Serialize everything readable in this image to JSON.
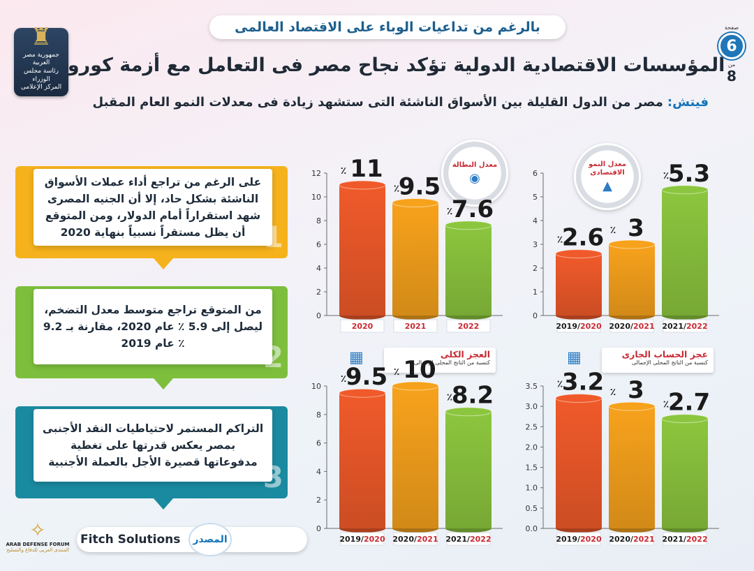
{
  "header": {
    "subtitle": "بالرغم من تداعيات الوباء على الاقتصاد العالمى",
    "title": "المؤسسات الاقتصادية الدولية تؤكد نجاح مصر فى التعامل مع أزمة كورونا",
    "fitch_name": "فيتش:",
    "fitch_text": "مصر من الدول القليلة بين الأسواق الناشئة التى ستشهد زيادة فى معدلات النمو العام المقبل"
  },
  "page": {
    "label_page": "صفحة",
    "current": "6",
    "label_of": "من",
    "total": "8"
  },
  "logo": {
    "org": "جمهورية مصر العربية\nرئاسة مجلس الوزراء\nالمركز الإعلامى",
    "icon": "eagle-emblem-icon"
  },
  "info_boxes": [
    {
      "number": "1",
      "text": "على الرغم من تراجع أداء عملات الأسواق الناشئة بشكل حاد، إلا أن الجنيه المصرى شهد استقراراً أمام الدولار، ومن المتوقع أن يظل مستقراً نسبياً بنهاية 2020",
      "color": "#f5b21c"
    },
    {
      "number": "2",
      "text": "من المتوقع تراجع متوسط معدل التضخم، ليصل إلى 5.9 ٪ عام 2020، مقارنة بـ 9.2 ٪ عام 2019",
      "color": "#7dbf3d"
    },
    {
      "number": "3",
      "text": "التراكم المستمر لاحتياطيات النقد الأجنبى بمصر يعكس قدرتها على تغطية مدفوعاتها قصيرة الأجل بالعملة الأجنبية",
      "color": "#1a8aa0"
    }
  ],
  "badges": {
    "growth": {
      "label": "معدل النمو الاقتصادى",
      "icon": "growth-chart-icon"
    },
    "unemployment": {
      "label": "معدل البطالة",
      "icon": "workers-icon"
    },
    "current_account": {
      "title": "عجز الحساب الجارى",
      "sub": "كنسبة من الناتج المحلى الإجمالى",
      "icon": "coins-chart-icon"
    },
    "overall_deficit": {
      "title": "العجز الكلى",
      "sub": "كنسبة من الناتج المحلى الإجمالى",
      "icon": "coins-chart-icon"
    }
  },
  "footer": {
    "source_label": "المصدر",
    "source_value": "Fitch Solutions",
    "watermark_name": "ARAB DEFENSE FORUM",
    "watermark_ar": "المنتدى العربى للدفاع والتسليح"
  },
  "chart_data": [
    {
      "id": "growth",
      "type": "bar",
      "percent_sign": "٪",
      "categories": [
        {
          "a": "2019/",
          "b": "2020"
        },
        {
          "a": "2020/",
          "b": "2021"
        },
        {
          "a": "2021/",
          "b": "2022"
        }
      ],
      "values": [
        2.6,
        3,
        5.3
      ],
      "labels": [
        "2.6",
        "3",
        "5.3"
      ],
      "ylim": [
        0,
        6
      ],
      "ticks": [
        "0",
        "1",
        "2",
        "3",
        "4",
        "5",
        "6"
      ],
      "tick_values": [
        0,
        1,
        2,
        3,
        4,
        5,
        6
      ],
      "colors": [
        "#f05a2a",
        "#f7a21c",
        "#8cc63e"
      ]
    },
    {
      "id": "unemployment",
      "type": "bar",
      "percent_sign": "٪",
      "categories": [
        {
          "a": "",
          "b": "2020"
        },
        {
          "a": "",
          "b": "2021"
        },
        {
          "a": "",
          "b": "2022"
        }
      ],
      "values": [
        11,
        9.5,
        7.6
      ],
      "labels": [
        "11",
        "9.5",
        "7.6"
      ],
      "ylim": [
        0,
        12
      ],
      "ticks": [
        "0",
        "2",
        "4",
        "6",
        "8",
        "10",
        "12"
      ],
      "tick_values": [
        0,
        2,
        4,
        6,
        8,
        10,
        12
      ],
      "colors": [
        "#f05a2a",
        "#f7a21c",
        "#8cc63e"
      ]
    },
    {
      "id": "current_account",
      "type": "bar",
      "percent_sign": "٪",
      "categories": [
        {
          "a": "2019/",
          "b": "2020"
        },
        {
          "a": "2020/",
          "b": "2021"
        },
        {
          "a": "2021/",
          "b": "2022"
        }
      ],
      "values": [
        3.2,
        3,
        2.7
      ],
      "labels": [
        "3.2",
        "3",
        "2.7"
      ],
      "ylim": [
        0,
        3.5
      ],
      "ticks": [
        "0.0",
        "0.5",
        "1.0",
        "1.5",
        "2.0",
        "2.5",
        "3.0",
        "3.5"
      ],
      "tick_values": [
        0,
        0.5,
        1,
        1.5,
        2,
        2.5,
        3,
        3.5
      ],
      "colors": [
        "#f05a2a",
        "#f7a21c",
        "#8cc63e"
      ]
    },
    {
      "id": "overall_deficit",
      "type": "bar",
      "percent_sign": "٪",
      "categories": [
        {
          "a": "2019/",
          "b": "2020"
        },
        {
          "a": "2020/",
          "b": "2021"
        },
        {
          "a": "2021/",
          "b": "2022"
        }
      ],
      "values": [
        9.5,
        10,
        8.2
      ],
      "labels": [
        "9.5",
        "10",
        "8.2"
      ],
      "ylim": [
        0,
        10
      ],
      "ticks": [
        "0",
        "2",
        "4",
        "6",
        "8",
        "10"
      ],
      "tick_values": [
        0,
        2,
        4,
        6,
        8,
        10
      ],
      "colors": [
        "#f05a2a",
        "#f7a21c",
        "#8cc63e"
      ]
    }
  ]
}
